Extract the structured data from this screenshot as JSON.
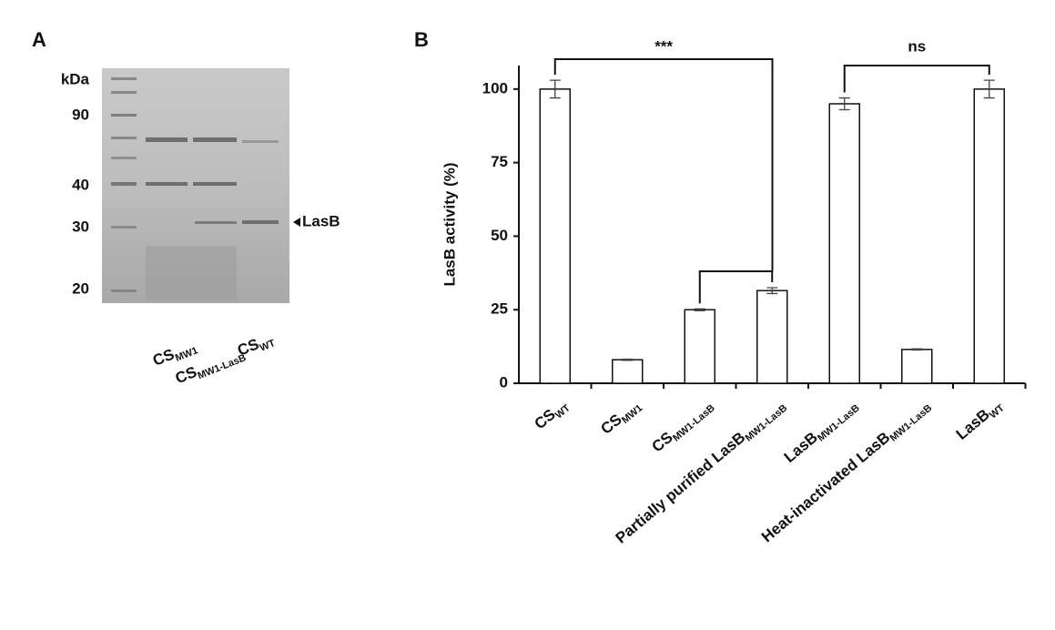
{
  "gel": {
    "panel_label": "A",
    "unit": "kDa",
    "markers": [
      90,
      40,
      30,
      20
    ],
    "band_label": "LasB",
    "lanes": [
      {
        "name": "CS",
        "sub": "MW1"
      },
      {
        "name": "CS",
        "sub": "MW1-LasB"
      },
      {
        "name": "CS",
        "sub": "WT"
      }
    ]
  },
  "chart_data": {
    "type": "bar",
    "panel_label": "B",
    "y_label": "LasB activity (%)",
    "categories": [
      "CS",
      "CS",
      "CS",
      "Partially  purified LasB",
      "LasB",
      "Heat-inactivated LasB",
      "LasB"
    ],
    "category_subscripts": [
      "WT",
      "MW1",
      "MW1-LasB",
      "MW1-LasB",
      "MW1-LasB",
      "MW1-LasB",
      "WT"
    ],
    "values": [
      100,
      8,
      25,
      31.5,
      95,
      11.5,
      100
    ],
    "errors": [
      3,
      0.2,
      0.3,
      1,
      2,
      0.2,
      3
    ],
    "color": "#ffffff",
    "ylim": [
      0,
      108
    ],
    "yticks": [
      0,
      25,
      50,
      75,
      100
    ],
    "annotations": [
      "***",
      "ns"
    ]
  }
}
